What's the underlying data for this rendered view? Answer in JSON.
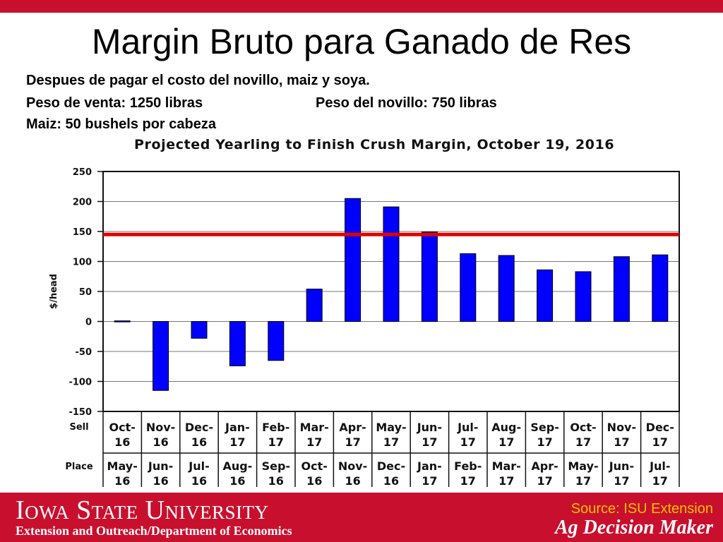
{
  "slide": {
    "title": "Margin Bruto para Ganado de Res",
    "line1": "Despues de pagar el costo del novillo, maiz y soya.",
    "line2a": "Peso de venta:  1250 libras",
    "line2b": "Peso del novillo:  750 libras",
    "line3": "Maiz:  50 bushels por cabeza"
  },
  "footer": {
    "university": "Iowa State University",
    "department": "Extension and Outreach/Department of Economics",
    "source": "Source: ISU Extension",
    "brand": "Ag Decision Maker"
  },
  "colors": {
    "brand_red": "#c8102e",
    "bar_blue": "#0000ff",
    "reference_line": "#e00000",
    "source_yellow": "#f5c000"
  },
  "chart_data": {
    "type": "bar",
    "title": "Projected Yearling to Finish Crush Margin, October 19, 2016",
    "ylabel": "$/head",
    "ylim": [
      -150,
      250
    ],
    "yticks": [
      250,
      200,
      150,
      100,
      50,
      0,
      -50,
      -100,
      -150
    ],
    "row_labels": {
      "sell": "Sell",
      "place": "Place"
    },
    "sell": [
      [
        "Oct-",
        "16"
      ],
      [
        "Nov-",
        "16"
      ],
      [
        "Dec-",
        "16"
      ],
      [
        "Jan-",
        "17"
      ],
      [
        "Feb-",
        "17"
      ],
      [
        "Mar-",
        "17"
      ],
      [
        "Apr-",
        "17"
      ],
      [
        "May-",
        "17"
      ],
      [
        "Jun-",
        "17"
      ],
      [
        "Jul-",
        "17"
      ],
      [
        "Aug-",
        "17"
      ],
      [
        "Sep-",
        "17"
      ],
      [
        "Oct-",
        "17"
      ],
      [
        "Nov-",
        "17"
      ],
      [
        "Dec-",
        "17"
      ]
    ],
    "place": [
      [
        "May-",
        "16"
      ],
      [
        "Jun-",
        "16"
      ],
      [
        "Jul-",
        "16"
      ],
      [
        "Aug-",
        "16"
      ],
      [
        "Sep-",
        "16"
      ],
      [
        "Oct-",
        "16"
      ],
      [
        "Nov-",
        "16"
      ],
      [
        "Dec-",
        "16"
      ],
      [
        "Jan-",
        "17"
      ],
      [
        "Feb-",
        "17"
      ],
      [
        "Mar-",
        "17"
      ],
      [
        "Apr-",
        "17"
      ],
      [
        "May-",
        "17"
      ],
      [
        "Jun-",
        "17"
      ],
      [
        "Jul-",
        "17"
      ]
    ],
    "values": [
      1,
      -115,
      -28,
      -74,
      -65,
      54,
      205,
      191,
      149,
      113,
      110,
      86,
      83,
      108,
      111
    ],
    "reference_line": 145,
    "grid": true
  }
}
